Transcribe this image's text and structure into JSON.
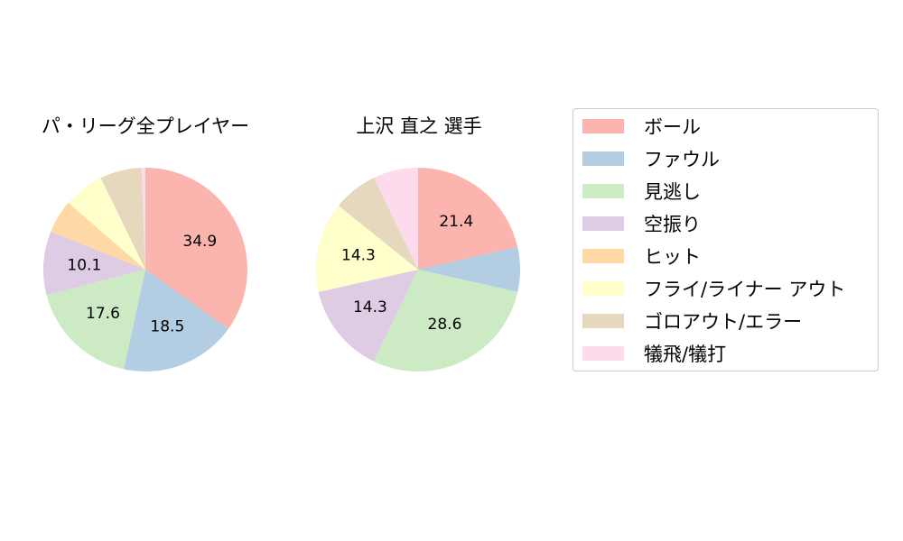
{
  "colors": {
    "ball": "#fbb4ae",
    "foul": "#b3cde3",
    "called_strike": "#ccebc5",
    "swinging_strike": "#decbe4",
    "hit": "#fed9a6",
    "fly_liner_out": "#ffffcc",
    "grounder_out_error": "#e5d8bd",
    "sacrifice": "#fddaec"
  },
  "legend": [
    {
      "label": "ボール",
      "color": "#fbb4ae"
    },
    {
      "label": "ファウル",
      "color": "#b3cde3"
    },
    {
      "label": "見逃し",
      "color": "#ccebc5"
    },
    {
      "label": "空振り",
      "color": "#decbe4"
    },
    {
      "label": "ヒット",
      "color": "#fed9a6"
    },
    {
      "label": "フライ/ライナー アウト",
      "color": "#ffffcc"
    },
    {
      "label": "ゴロアウト/エラー",
      "color": "#e5d8bd"
    },
    {
      "label": "犠飛/犠打",
      "color": "#fddaec"
    }
  ],
  "chart_data": [
    {
      "type": "pie",
      "title": "パ・リーグ全プレイヤー",
      "categories": [
        "ボール",
        "ファウル",
        "見逃し",
        "空振り",
        "ヒット",
        "フライ/ライナー アウト",
        "ゴロアウト/エラー",
        "犠飛/犠打"
      ],
      "values": [
        34.9,
        18.5,
        17.6,
        10.1,
        5.3,
        6.4,
        6.6,
        0.6
      ],
      "labels": [
        "34.9",
        "18.5",
        "17.6",
        "10.1",
        "",
        "",
        "",
        ""
      ]
    },
    {
      "type": "pie",
      "title": "上沢 直之  選手",
      "categories": [
        "ボール",
        "ファウル",
        "見逃し",
        "空振り",
        "ヒット",
        "フライ/ライナー アウト",
        "ゴロアウト/エラー",
        "犠飛/犠打"
      ],
      "values": [
        21.4,
        7.1,
        28.6,
        14.3,
        0,
        14.3,
        7.1,
        7.1
      ],
      "labels": [
        "21.4",
        "",
        "28.6",
        "14.3",
        "",
        "14.3",
        "",
        ""
      ]
    }
  ]
}
